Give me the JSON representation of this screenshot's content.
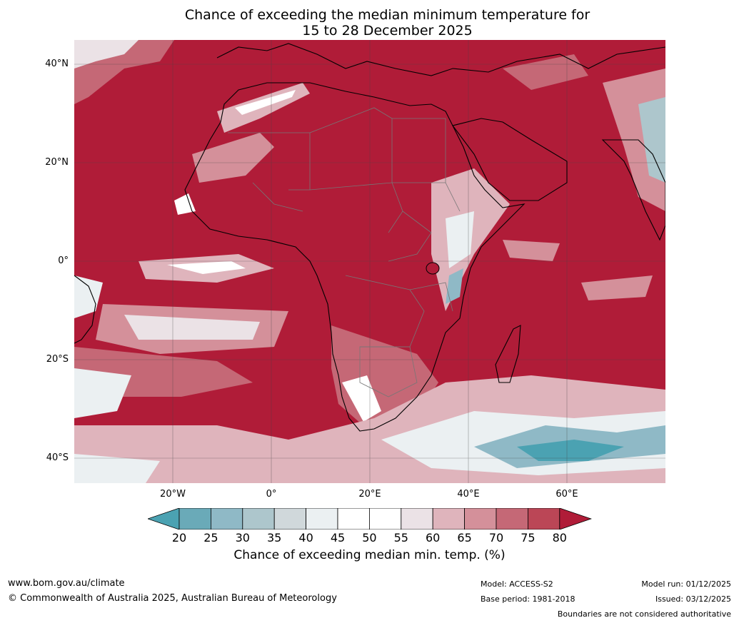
{
  "title": {
    "line1": "Chance of exceeding the median minimum temperature for",
    "line2": "15 to 28 December 2025"
  },
  "axes": {
    "lat_labels": [
      "40°N",
      "20°N",
      "0°",
      "20°S",
      "40°S"
    ],
    "lon_labels": [
      "20°W",
      "0°",
      "20°E",
      "40°E",
      "60°E"
    ]
  },
  "colorbar": {
    "ticks": [
      "20",
      "25",
      "30",
      "35",
      "40",
      "45",
      "50",
      "55",
      "60",
      "65",
      "70",
      "75",
      "80"
    ],
    "title": "Chance of exceeding median min. temp. (%)",
    "colors": [
      "#4ba2b2",
      "#6aaab8",
      "#8fb9c6",
      "#adc6cc",
      "#d0d8db",
      "#ebf0f2",
      "#ffffff",
      "#ffffff",
      "#ebe2e6",
      "#dfb4bc",
      "#d4909a",
      "#c56876",
      "#bb4656",
      "#b01c38"
    ]
  },
  "footer": {
    "url": "www.bom.gov.au/climate",
    "copyright": "© Commonwealth of Australia 2025, Australian Bureau of Meteorology",
    "model": "Model: ACCESS-S2",
    "base_period": "Base period: 1981-2018",
    "model_run": "Model run: 01/12/2025",
    "issued": "Issued: 03/12/2025",
    "disclaimer": "Boundaries are not considered authoritative"
  }
}
